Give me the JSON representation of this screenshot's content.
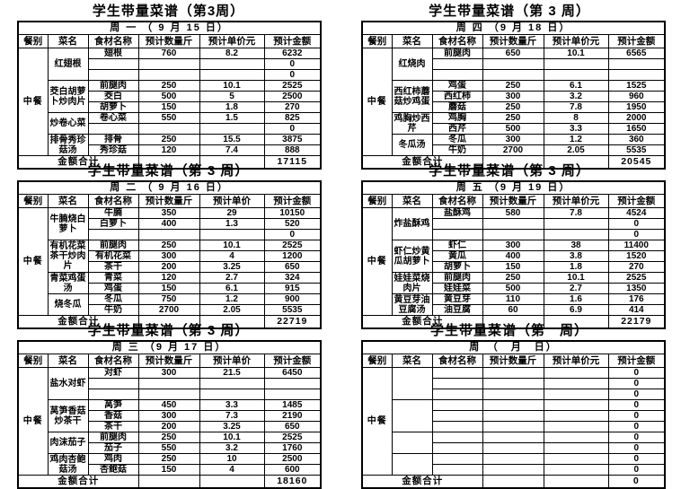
{
  "page": {
    "background": "#ffffff",
    "text_color": "#000000",
    "border_color": "#000000"
  },
  "tables": [
    {
      "title": "学生带量菜谱（第3周）",
      "day_header": "周 一 （ 9 月 15 日）",
      "columns": [
        "餐别",
        "菜名",
        "食材名称",
        "预计数量斤",
        "预计单价元",
        "预计金额"
      ],
      "meal": "中餐",
      "groups": [
        {
          "dish": "红翅根",
          "rows": [
            [
              "翅根",
              "760",
              "8.2",
              "6232"
            ],
            [
              "",
              "",
              "",
              "0"
            ],
            [
              "",
              "",
              "",
              "0"
            ]
          ]
        },
        {
          "dish": "茭白胡萝卜炒肉片",
          "rows": [
            [
              "前腿肉",
              "250",
              "10.1",
              "2525"
            ],
            [
              "茭白",
              "500",
              "5",
              "2500"
            ],
            [
              "胡萝卜",
              "150",
              "1.8",
              "270"
            ]
          ]
        },
        {
          "dish": "炒卷心菜",
          "rows": [
            [
              "卷心菜",
              "550",
              "1.5",
              "825"
            ],
            [
              "",
              "",
              "",
              "0"
            ]
          ]
        },
        {
          "dish": "排骨秀珍菇汤",
          "rows": [
            [
              "排骨",
              "250",
              "15.5",
              "3875"
            ],
            [
              "秀珍菇",
              "120",
              "7.4",
              "888"
            ]
          ]
        }
      ],
      "total_label": "金额合计",
      "total": "17115"
    },
    {
      "title": "学生带量菜谱（第 3 周）",
      "day_header": "周 四 （9 月 18 日）",
      "columns": [
        "餐别",
        "菜名",
        "食材名称",
        "预计数量斤",
        "预计单价元",
        "预计金额"
      ],
      "meal": "中餐",
      "groups": [
        {
          "dish": "红烧肉",
          "rows": [
            [
              "前腿肉",
              "650",
              "10.1",
              "6565"
            ],
            [
              "",
              "",
              "",
              ""
            ],
            [
              "",
              "",
              "",
              ""
            ]
          ]
        },
        {
          "dish": "西红柿蘑菇炒鸡蛋",
          "rows": [
            [
              "鸡蛋",
              "250",
              "6.1",
              "1525"
            ],
            [
              "西红柿",
              "300",
              "3.2",
              "960"
            ],
            [
              "蘑菇",
              "250",
              "7.8",
              "1950"
            ]
          ]
        },
        {
          "dish": "鸡胸炒西芹",
          "rows": [
            [
              "鸡胸",
              "250",
              "8",
              "2000"
            ],
            [
              "西芹",
              "500",
              "3.3",
              "1650"
            ]
          ]
        },
        {
          "dish": "冬瓜汤",
          "rows": [
            [
              "冬瓜",
              "300",
              "1.2",
              "360"
            ],
            [
              "牛奶",
              "2700",
              "2.05",
              "5535"
            ]
          ]
        }
      ],
      "total_label": "金额合计",
      "total": "20545"
    },
    {
      "title": "学生带量菜谱（第 3 周）",
      "day_header": "周 二 （ 9 月 16 日）",
      "columns": [
        "餐别",
        "菜名",
        "食材名称",
        "预计数量斤",
        "预计单价",
        "预计金额"
      ],
      "meal": "中餐",
      "groups": [
        {
          "dish": "牛腩烧白萝卜",
          "rows": [
            [
              "牛腩",
              "350",
              "29",
              "10150"
            ],
            [
              "白萝卜",
              "400",
              "1.3",
              "520"
            ],
            [
              "",
              "",
              "",
              "0"
            ]
          ]
        },
        {
          "dish": "有机花菜茶干炒肉片",
          "rows": [
            [
              "前腿肉",
              "250",
              "10.1",
              "2525"
            ],
            [
              "有机花菜",
              "300",
              "4",
              "1200"
            ],
            [
              "茶干",
              "200",
              "3.25",
              "650"
            ]
          ]
        },
        {
          "dish": "青菜鸡蛋汤",
          "rows": [
            [
              "青菜",
              "120",
              "2.7",
              "324"
            ],
            [
              "鸡蛋",
              "150",
              "6.1",
              "915"
            ]
          ]
        },
        {
          "dish": "烧冬瓜",
          "rows": [
            [
              "冬瓜",
              "750",
              "1.2",
              "900"
            ],
            [
              "牛奶",
              "2700",
              "2.05",
              "5535"
            ]
          ]
        }
      ],
      "total_label": "金额合计",
      "total": "22719"
    },
    {
      "title": "学生带量菜谱（第 3 周）",
      "day_header": "周 五 （9 月 19 日）",
      "columns": [
        "餐别",
        "菜名",
        "食材名称",
        "预计数量斤",
        "预计单价元",
        "预计金额"
      ],
      "meal": "中餐",
      "groups": [
        {
          "dish": "炸盐酥鸡",
          "rows": [
            [
              "盐酥鸡",
              "580",
              "7.8",
              "4524"
            ],
            [
              "",
              "",
              "",
              "0"
            ],
            [
              "",
              "",
              "",
              "0"
            ]
          ]
        },
        {
          "dish": "虾仁炒黄瓜胡萝卜",
          "rows": [
            [
              "虾仁",
              "300",
              "38",
              "11400"
            ],
            [
              "黄瓜",
              "400",
              "3.8",
              "1520"
            ],
            [
              "胡萝卜",
              "150",
              "1.8",
              "270"
            ]
          ]
        },
        {
          "dish": "娃娃菜烧肉片",
          "rows": [
            [
              "前腿肉",
              "250",
              "10.1",
              "2525"
            ],
            [
              "娃娃菜",
              "500",
              "2.7",
              "1350"
            ]
          ]
        },
        {
          "dish": "黄豆芽油豆腐汤",
          "rows": [
            [
              "黄豆芽",
              "110",
              "1.6",
              "176"
            ],
            [
              "油豆腐",
              "60",
              "6.9",
              "414"
            ]
          ]
        }
      ],
      "total_label": "金额合计",
      "total": "22179"
    },
    {
      "title": "学生带量菜谱（第 3 周）",
      "day_header": "周 三 （9 月 17 日）",
      "columns": [
        "餐别",
        "菜名",
        "食材名称",
        "预计数量斤",
        "预计单价",
        "预计金额"
      ],
      "meal": "中餐",
      "groups": [
        {
          "dish": "盐水对虾",
          "rows": [
            [
              "对虾",
              "300",
              "21.5",
              "6450"
            ],
            [
              "",
              "",
              "",
              ""
            ],
            [
              "",
              "",
              "",
              ""
            ]
          ]
        },
        {
          "dish": "莴笋香菇炒茶干",
          "rows": [
            [
              "莴笋",
              "450",
              "3.3",
              "1485"
            ],
            [
              "香菇",
              "300",
              "7.3",
              "2190"
            ],
            [
              "茶干",
              "200",
              "3.25",
              "650"
            ]
          ]
        },
        {
          "dish": "肉沫茄子",
          "rows": [
            [
              "前腿肉",
              "250",
              "10.1",
              "2525"
            ],
            [
              "茄子",
              "550",
              "3.2",
              "1760"
            ]
          ]
        },
        {
          "dish": "鸡肉杏鲍菇汤",
          "rows": [
            [
              "鸡肉",
              "250",
              "10",
              "2500"
            ],
            [
              "杏鲍菇",
              "150",
              "4",
              "600"
            ]
          ]
        }
      ],
      "total_label": "金额合计",
      "total": "18160"
    },
    {
      "title": "学生带量菜谱（第　周）",
      "day_header": "周　（　月　日）",
      "columns": [
        "餐别",
        "菜名",
        "食材名称",
        "预计数量斤",
        "预计单价元",
        "预计金额"
      ],
      "meal": "中餐",
      "groups": [
        {
          "dish": "",
          "rows": [
            [
              "",
              "",
              "",
              "0"
            ],
            [
              "",
              "",
              "",
              "0"
            ],
            [
              "",
              "",
              "",
              "0"
            ]
          ]
        },
        {
          "dish": "",
          "rows": [
            [
              "",
              "",
              "",
              "0"
            ],
            [
              "",
              "",
              "",
              "0"
            ],
            [
              "",
              "",
              "",
              "0"
            ]
          ]
        },
        {
          "dish": "",
          "rows": [
            [
              "",
              "",
              "",
              "0"
            ],
            [
              "",
              "",
              "",
              "0"
            ]
          ]
        },
        {
          "dish": "",
          "rows": [
            [
              "",
              "",
              "",
              "0"
            ],
            [
              "",
              "",
              "",
              "0"
            ]
          ]
        }
      ],
      "total_label": "金额合计",
      "total": "0"
    }
  ]
}
